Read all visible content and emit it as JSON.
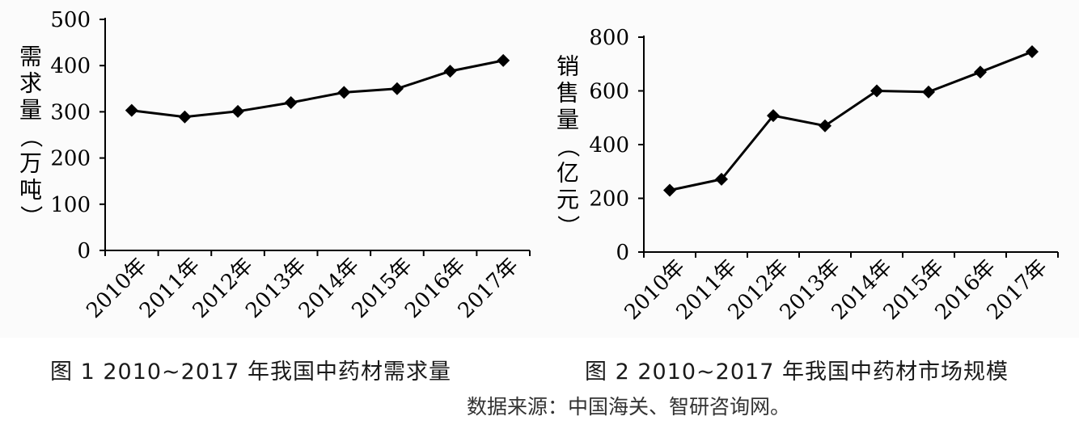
{
  "chart_data": [
    {
      "type": "line",
      "caption": "图 1   2010~2017 年我国中药材需求量",
      "ylabel": "需求量（万吨）",
      "categories": [
        "2010年",
        "2011年",
        "2012年",
        "2013年",
        "2014年",
        "2015年",
        "2016年",
        "2017年"
      ],
      "values": [
        303,
        289,
        301,
        320,
        342,
        350,
        388,
        411
      ],
      "ylim": [
        0,
        500
      ],
      "yticks": [
        0,
        100,
        200,
        300,
        400,
        500
      ],
      "marker": "diamond",
      "grid": false,
      "line_color": "#000000"
    },
    {
      "type": "line",
      "caption": "图 2   2010~2017 年我国中药材市场规模",
      "ylabel": "销售量（亿元）",
      "categories": [
        "2010年",
        "2011年",
        "2012年",
        "2013年",
        "2014年",
        "2015年",
        "2016年",
        "2017年"
      ],
      "values": [
        230,
        271,
        508,
        470,
        600,
        596,
        670,
        746
      ],
      "ylim": [
        0,
        800
      ],
      "yticks": [
        0,
        200,
        400,
        600,
        800
      ],
      "marker": "diamond",
      "grid": false,
      "line_color": "#000000"
    }
  ],
  "source_note": "数据来源：中国海关、智研咨询网。"
}
